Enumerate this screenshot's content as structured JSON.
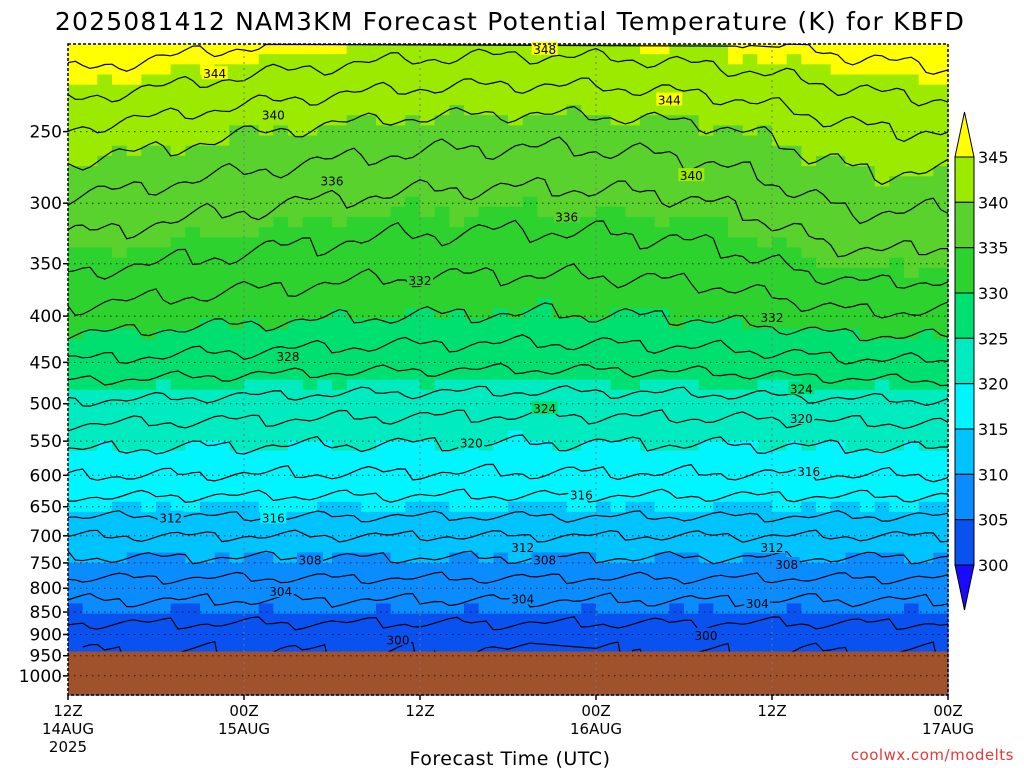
{
  "title": "2025081412 NAM3KM Forecast Potential Temperature (K) for KBFD",
  "credit": "coolwx.com/modelts",
  "colors": {
    "ground": "#a0522d",
    "levels": [
      "#1a0aff",
      "#0a52f0",
      "#0a8cff",
      "#00c3ff",
      "#00f5ff",
      "#00ecc0",
      "#00e070",
      "#2ed22e",
      "#59d22e",
      "#9bea00",
      "#cdf000",
      "#ffff00"
    ]
  },
  "chart_data": {
    "type": "contour-filled",
    "variable": "Potential Temperature (K)",
    "xlabel": "Forecast Time (UTC)",
    "x_range_hours": [
      0,
      60
    ],
    "x_ticks": [
      {
        "hour": 0,
        "line1": "12Z",
        "line2": "14AUG",
        "line3": "2025"
      },
      {
        "hour": 12,
        "line1": "00Z",
        "line2": "15AUG",
        "line3": ""
      },
      {
        "hour": 24,
        "line1": "12Z",
        "line2": "",
        "line3": ""
      },
      {
        "hour": 36,
        "line1": "00Z",
        "line2": "16AUG",
        "line3": ""
      },
      {
        "hour": 48,
        "line1": "12Z",
        "line2": "",
        "line3": ""
      },
      {
        "hour": 60,
        "line1": "00Z",
        "line2": "17AUG",
        "line3": ""
      }
    ],
    "ylabel": "",
    "y_axis": "pressure (hPa), log scale, reversed",
    "y_range": [
      1050,
      200
    ],
    "y_ticks": [
      250,
      300,
      350,
      400,
      450,
      500,
      550,
      600,
      650,
      700,
      750,
      800,
      850,
      900,
      950,
      1000
    ],
    "surface_pressure_hPa": 940,
    "colorbar": {
      "levels": [
        300,
        305,
        310,
        315,
        320,
        325,
        330,
        335,
        340,
        345
      ],
      "extend": "both"
    },
    "contour_interval": 2,
    "contour_labels": [
      {
        "value": "348",
        "hour": 32.5,
        "p": 203
      },
      {
        "value": "344",
        "hour": 10.0,
        "p": 216
      },
      {
        "value": "344",
        "hour": 41.0,
        "p": 231
      },
      {
        "value": "340",
        "hour": 14.0,
        "p": 240
      },
      {
        "value": "340",
        "hour": 42.5,
        "p": 280
      },
      {
        "value": "336",
        "hour": 18.0,
        "p": 284
      },
      {
        "value": "336",
        "hour": 34.0,
        "p": 311
      },
      {
        "value": "332",
        "hour": 24.0,
        "p": 366
      },
      {
        "value": "332",
        "hour": 48.0,
        "p": 402
      },
      {
        "value": "328",
        "hour": 15.0,
        "p": 444
      },
      {
        "value": "324",
        "hour": 50.0,
        "p": 482
      },
      {
        "value": "324",
        "hour": 32.5,
        "p": 507
      },
      {
        "value": "320",
        "hour": 50.0,
        "p": 520
      },
      {
        "value": "320",
        "hour": 27.5,
        "p": 553
      },
      {
        "value": "316",
        "hour": 50.5,
        "p": 595
      },
      {
        "value": "316",
        "hour": 35.0,
        "p": 632
      },
      {
        "value": "312",
        "hour": 7.0,
        "p": 670
      },
      {
        "value": "316",
        "hour": 14.0,
        "p": 670
      },
      {
        "value": "312",
        "hour": 31.0,
        "p": 722
      },
      {
        "value": "312",
        "hour": 48.0,
        "p": 722
      },
      {
        "value": "308",
        "hour": 16.5,
        "p": 745
      },
      {
        "value": "308",
        "hour": 32.5,
        "p": 745
      },
      {
        "value": "308",
        "hour": 49.0,
        "p": 754
      },
      {
        "value": "304",
        "hour": 14.5,
        "p": 808
      },
      {
        "value": "304",
        "hour": 31.0,
        "p": 823
      },
      {
        "value": "304",
        "hour": 47.0,
        "p": 833
      },
      {
        "value": "300",
        "hour": 22.5,
        "p": 914
      },
      {
        "value": "300",
        "hour": 43.5,
        "p": 903
      }
    ],
    "theta_profile": [
      {
        "p": 940,
        "theta": 302
      },
      {
        "p": 900,
        "theta": 303
      },
      {
        "p": 850,
        "theta": 305
      },
      {
        "p": 800,
        "theta": 307
      },
      {
        "p": 750,
        "theta": 309.5
      },
      {
        "p": 700,
        "theta": 312
      },
      {
        "p": 650,
        "theta": 315
      },
      {
        "p": 600,
        "theta": 318
      },
      {
        "p": 550,
        "theta": 320.5
      },
      {
        "p": 500,
        "theta": 323.5
      },
      {
        "p": 450,
        "theta": 327.5
      },
      {
        "p": 400,
        "theta": 331
      },
      {
        "p": 350,
        "theta": 334
      },
      {
        "p": 300,
        "theta": 337
      },
      {
        "p": 250,
        "theta": 341
      },
      {
        "p": 200,
        "theta": 347
      }
    ]
  }
}
